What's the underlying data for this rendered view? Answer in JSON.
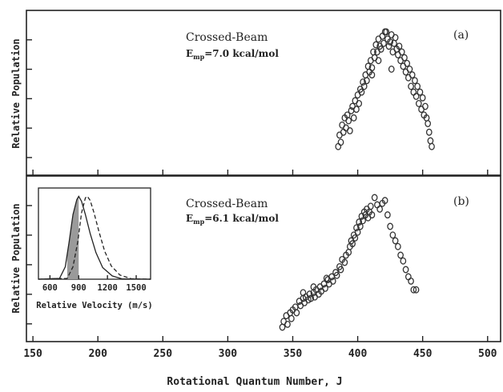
{
  "chart_data": [
    {
      "panel": "(a)",
      "type": "scatter",
      "title": "Crossed-Beam",
      "energy_label": {
        "E": "E",
        "sub": "mp",
        "rest": "=7.0 kcal/mol"
      },
      "ylabel": "Relative Population",
      "xlim": [
        145,
        510
      ],
      "ylim": [
        0,
        1.15
      ],
      "points": [
        [
          385,
          0.2
        ],
        [
          386,
          0.28
        ],
        [
          387,
          0.23
        ],
        [
          388,
          0.35
        ],
        [
          389,
          0.3
        ],
        [
          390,
          0.4
        ],
        [
          391,
          0.33
        ],
        [
          392,
          0.42
        ],
        [
          393,
          0.38
        ],
        [
          394,
          0.31
        ],
        [
          395,
          0.45
        ],
        [
          396,
          0.48
        ],
        [
          397,
          0.4
        ],
        [
          398,
          0.52
        ],
        [
          399,
          0.46
        ],
        [
          400,
          0.56
        ],
        [
          401,
          0.5
        ],
        [
          402,
          0.6
        ],
        [
          403,
          0.58
        ],
        [
          404,
          0.65
        ],
        [
          405,
          0.62
        ],
        [
          406,
          0.7
        ],
        [
          407,
          0.66
        ],
        [
          408,
          0.76
        ],
        [
          409,
          0.72
        ],
        [
          410,
          0.8
        ],
        [
          411,
          0.75
        ],
        [
          412,
          0.86
        ],
        [
          413,
          0.82
        ],
        [
          414,
          0.91
        ],
        [
          415,
          0.86
        ],
        [
          416,
          0.95
        ],
        [
          417,
          0.9
        ],
        [
          418,
          0.88
        ],
        [
          419,
          0.97
        ],
        [
          420,
          0.92
        ],
        [
          421,
          1.0
        ],
        [
          422,
          1.0
        ],
        [
          423,
          0.95
        ],
        [
          424,
          0.9
        ],
        [
          425,
          0.93
        ],
        [
          426,
          0.98
        ],
        [
          427,
          0.86
        ],
        [
          428,
          0.92
        ],
        [
          429,
          0.96
        ],
        [
          430,
          0.88
        ],
        [
          431,
          0.84
        ],
        [
          432,
          0.9
        ],
        [
          433,
          0.8
        ],
        [
          434,
          0.86
        ],
        [
          435,
          0.76
        ],
        [
          436,
          0.82
        ],
        [
          437,
          0.72
        ],
        [
          438,
          0.78
        ],
        [
          439,
          0.68
        ],
        [
          440,
          0.74
        ],
        [
          441,
          0.62
        ],
        [
          442,
          0.7
        ],
        [
          443,
          0.58
        ],
        [
          444,
          0.66
        ],
        [
          445,
          0.55
        ],
        [
          446,
          0.62
        ],
        [
          447,
          0.5
        ],
        [
          448,
          0.58
        ],
        [
          449,
          0.46
        ],
        [
          450,
          0.54
        ],
        [
          451,
          0.42
        ],
        [
          452,
          0.48
        ],
        [
          453,
          0.4
        ],
        [
          454,
          0.36
        ],
        [
          455,
          0.3
        ],
        [
          456,
          0.24
        ],
        [
          457,
          0.2
        ],
        [
          411,
          0.7
        ],
        [
          416,
          0.8
        ],
        [
          426,
          0.74
        ]
      ]
    },
    {
      "panel": "(b)",
      "type": "scatter",
      "title": "Crossed-Beam",
      "energy_label": {
        "E": "E",
        "sub": "mp",
        "rest": "=6.1 kcal/mol"
      },
      "ylabel": "Relative Population",
      "xlim": [
        145,
        510
      ],
      "ylim": [
        0,
        1.15
      ],
      "points": [
        [
          342,
          0.1
        ],
        [
          343,
          0.14
        ],
        [
          345,
          0.18
        ],
        [
          346,
          0.12
        ],
        [
          348,
          0.2
        ],
        [
          349,
          0.16
        ],
        [
          350,
          0.22
        ],
        [
          352,
          0.24
        ],
        [
          353,
          0.2
        ],
        [
          355,
          0.28
        ],
        [
          356,
          0.25
        ],
        [
          358,
          0.3
        ],
        [
          359,
          0.27
        ],
        [
          360,
          0.31
        ],
        [
          362,
          0.29
        ],
        [
          363,
          0.33
        ],
        [
          364,
          0.3
        ],
        [
          366,
          0.34
        ],
        [
          367,
          0.31
        ],
        [
          368,
          0.36
        ],
        [
          370,
          0.33
        ],
        [
          371,
          0.38
        ],
        [
          372,
          0.35
        ],
        [
          374,
          0.4
        ],
        [
          375,
          0.37
        ],
        [
          377,
          0.43
        ],
        [
          378,
          0.4
        ],
        [
          380,
          0.45
        ],
        [
          381,
          0.42
        ],
        [
          383,
          0.48
        ],
        [
          384,
          0.46
        ],
        [
          386,
          0.52
        ],
        [
          387,
          0.5
        ],
        [
          388,
          0.57
        ],
        [
          390,
          0.55
        ],
        [
          391,
          0.6
        ],
        [
          393,
          0.62
        ],
        [
          394,
          0.66
        ],
        [
          395,
          0.7
        ],
        [
          396,
          0.68
        ],
        [
          397,
          0.74
        ],
        [
          398,
          0.72
        ],
        [
          399,
          0.79
        ],
        [
          400,
          0.76
        ],
        [
          401,
          0.83
        ],
        [
          402,
          0.8
        ],
        [
          403,
          0.87
        ],
        [
          404,
          0.84
        ],
        [
          405,
          0.9
        ],
        [
          406,
          0.88
        ],
        [
          407,
          0.92
        ],
        [
          408,
          0.86
        ],
        [
          409,
          0.9
        ],
        [
          410,
          0.94
        ],
        [
          411,
          0.88
        ],
        [
          413,
          1.0
        ],
        [
          415,
          0.95
        ],
        [
          417,
          0.92
        ],
        [
          419,
          0.96
        ],
        [
          421,
          0.98
        ],
        [
          423,
          0.88
        ],
        [
          425,
          0.8
        ],
        [
          427,
          0.74
        ],
        [
          429,
          0.7
        ],
        [
          431,
          0.66
        ],
        [
          433,
          0.6
        ],
        [
          435,
          0.56
        ],
        [
          437,
          0.5
        ],
        [
          439,
          0.45
        ],
        [
          441,
          0.42
        ],
        [
          443,
          0.36
        ],
        [
          445,
          0.36
        ],
        [
          358,
          0.34
        ],
        [
          366,
          0.38
        ],
        [
          376,
          0.44
        ]
      ],
      "inset": {
        "type": "line",
        "xlabel": "Relative Velocity (m/s)",
        "xlim": [
          480,
          1650
        ],
        "ylim": [
          0,
          1.1
        ],
        "xticks": [
          600,
          900,
          1200,
          1500
        ],
        "series": [
          {
            "style": "solid",
            "values": [
              [
                480,
                0
              ],
              [
                700,
                0.01
              ],
              [
                760,
                0.15
              ],
              [
                800,
                0.45
              ],
              [
                840,
                0.78
              ],
              [
                880,
                0.96
              ],
              [
                900,
                1.0
              ],
              [
                930,
                0.94
              ],
              [
                970,
                0.78
              ],
              [
                1020,
                0.55
              ],
              [
                1080,
                0.32
              ],
              [
                1150,
                0.14
              ],
              [
                1250,
                0.04
              ],
              [
                1350,
                0.005
              ],
              [
                1650,
                0
              ]
            ]
          },
          {
            "style": "dashed",
            "values": [
              [
                480,
                0
              ],
              [
                780,
                0.01
              ],
              [
                840,
                0.15
              ],
              [
                890,
                0.45
              ],
              [
                930,
                0.8
              ],
              [
                970,
                0.98
              ],
              [
                990,
                1.0
              ],
              [
                1020,
                0.95
              ],
              [
                1060,
                0.8
              ],
              [
                1110,
                0.58
              ],
              [
                1170,
                0.34
              ],
              [
                1240,
                0.16
              ],
              [
                1330,
                0.05
              ],
              [
                1450,
                0.005
              ],
              [
                1650,
                0
              ]
            ]
          }
        ],
        "shaded": {
          "x_from": 780,
          "x_to": 900
        }
      }
    }
  ],
  "shared_xlabel": "Rotational Quantum Number, J",
  "xticks": [
    150,
    200,
    250,
    300,
    350,
    400,
    450,
    500
  ]
}
